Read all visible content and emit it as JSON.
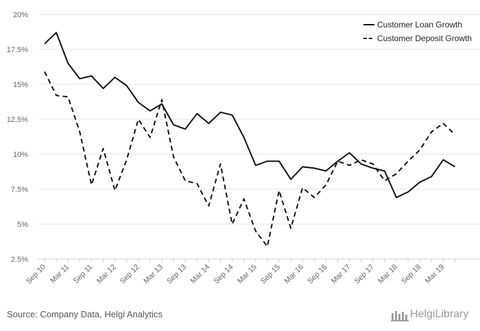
{
  "chart_data": {
    "type": "line",
    "x": [
      "Sep 10",
      "Dec 10",
      "Mar 11",
      "Jun 11",
      "Sep 11",
      "Dec 11",
      "Mar 12",
      "Jun 12",
      "Sep 12",
      "Dec 12",
      "Mar 13",
      "Jun 13",
      "Sep 13",
      "Dec 13",
      "Mar 14",
      "Jun 14",
      "Sep 14",
      "Dec 14",
      "Mar 15",
      "Jun 15",
      "Sep 15",
      "Dec 15",
      "Mar 16",
      "Jun 16",
      "Sep 16",
      "Dec 16",
      "Mar 17",
      "Jun 17",
      "Sep 17",
      "Dec 17",
      "Mar 18",
      "Jun 18",
      "Sep 18",
      "Dec 18",
      "Mar 19",
      "Jun 19"
    ],
    "tick_labels": [
      "Sep 10",
      "Mar 11",
      "Sep 11",
      "Mar 12",
      "Sep 12",
      "Mar 13",
      "Sep 13",
      "Mar 14",
      "Sep 14",
      "Mar 15",
      "Sep 15",
      "Mar 16",
      "Sep 16",
      "Mar 17",
      "Sep 17",
      "Mar 18",
      "Sep 18",
      "Mar 19"
    ],
    "y_ticks": [
      "2.5%",
      "5%",
      "7.5%",
      "10%",
      "12.5%",
      "15%",
      "17.5%",
      "20%"
    ],
    "ylim": [
      2.5,
      20
    ],
    "series": [
      {
        "name": "Customer Loan Growth",
        "style": "solid",
        "values": [
          17.9,
          18.7,
          16.5,
          15.4,
          15.6,
          14.7,
          15.5,
          14.9,
          13.7,
          13.1,
          13.6,
          12.1,
          11.8,
          12.9,
          12.2,
          13.0,
          12.8,
          11.2,
          9.2,
          9.5,
          9.5,
          8.2,
          9.1,
          9.0,
          8.8,
          9.5,
          10.1,
          9.3,
          9.0,
          8.8,
          6.9,
          7.3,
          8.0,
          8.4,
          9.6,
          9.1
        ]
      },
      {
        "name": "Customer Deposit Growth",
        "style": "dashed",
        "values": [
          15.9,
          14.2,
          14.1,
          11.6,
          7.8,
          10.4,
          7.4,
          9.6,
          12.5,
          11.2,
          13.9,
          9.8,
          8.1,
          7.9,
          6.3,
          9.3,
          5.0,
          6.8,
          4.5,
          3.4,
          7.4,
          4.7,
          7.6,
          6.9,
          7.8,
          9.5,
          9.2,
          9.6,
          9.3,
          8.1,
          8.6,
          9.5,
          10.3,
          11.6,
          12.2,
          11.4
        ]
      }
    ],
    "grid": "horizontal",
    "legend": "top-right",
    "colors": {
      "line": "#111111",
      "grid": "#e6e6e6",
      "text": "#666666"
    }
  },
  "footer": {
    "source": "Source: Company Data, Helgi Analytics",
    "brand": "HelgiLibrary"
  }
}
